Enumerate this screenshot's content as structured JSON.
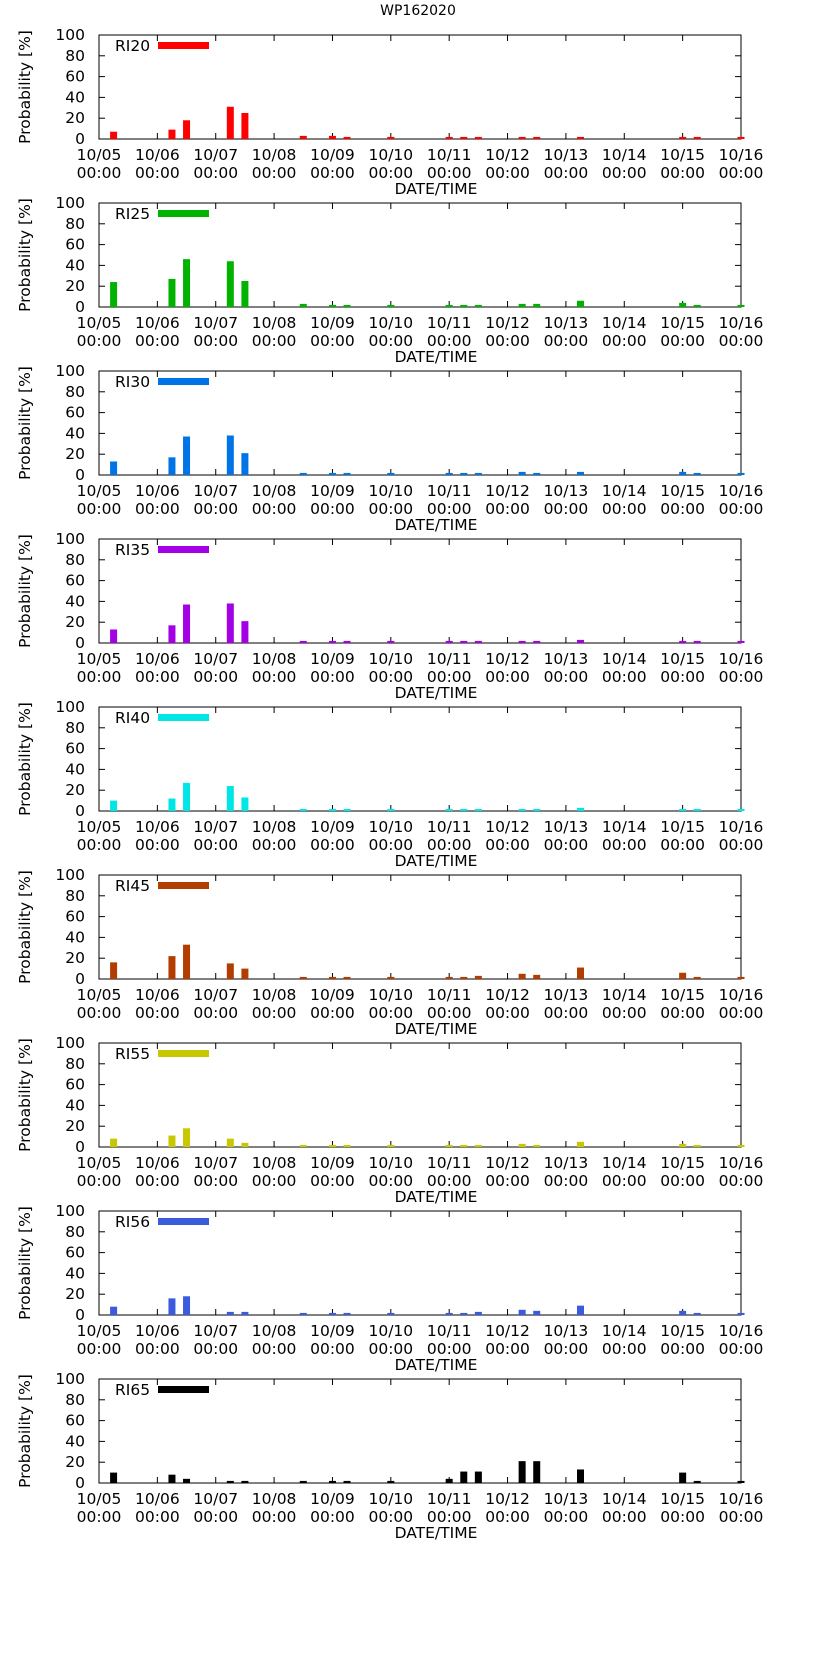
{
  "title": "WP162020",
  "x_axis_label": "DATE/TIME",
  "y_axis_label": "Probability [%]",
  "x_tick_labels": [
    {
      "date": "10/05",
      "time": "00:00"
    },
    {
      "date": "10/06",
      "time": "00:00"
    },
    {
      "date": "10/07",
      "time": "00:00"
    },
    {
      "date": "10/08",
      "time": "00:00"
    },
    {
      "date": "10/09",
      "time": "00:00"
    },
    {
      "date": "10/10",
      "time": "00:00"
    },
    {
      "date": "10/11",
      "time": "00:00"
    },
    {
      "date": "10/12",
      "time": "00:00"
    },
    {
      "date": "10/13",
      "time": "00:00"
    },
    {
      "date": "10/14",
      "time": "00:00"
    },
    {
      "date": "10/15",
      "time": "00:00"
    },
    {
      "date": "10/16",
      "time": "00:00"
    }
  ],
  "y_tick_labels": [
    "0",
    "20",
    "40",
    "60",
    "80",
    "100"
  ],
  "chart_data": {
    "type": "bar",
    "title": "WP162020",
    "xlabel": "DATE/TIME",
    "ylabel": "Probability [%]",
    "ylim": [
      0,
      100
    ],
    "x_unit": "days since 10/05 00:00",
    "xlim": [
      0,
      11
    ],
    "x": [
      0.25,
      1.25,
      1.5,
      2.25,
      2.5,
      3.5,
      4.0,
      4.25,
      5.0,
      6.0,
      6.25,
      6.5,
      7.25,
      7.5,
      8.25,
      10.0,
      10.25,
      11.0
    ],
    "series": [
      {
        "name": "RI20",
        "color": "#ff0000",
        "values": [
          7,
          9,
          18,
          31,
          25,
          3,
          3,
          2,
          2,
          2,
          2,
          2,
          2,
          2,
          2,
          2,
          2,
          2
        ]
      },
      {
        "name": "RI25",
        "color": "#00b300",
        "values": [
          24,
          27,
          46,
          44,
          25,
          3,
          2,
          2,
          2,
          2,
          2,
          2,
          3,
          3,
          6,
          4,
          2,
          2
        ]
      },
      {
        "name": "RI30",
        "color": "#0073e6",
        "values": [
          13,
          17,
          37,
          38,
          21,
          2,
          2,
          2,
          2,
          2,
          2,
          2,
          3,
          2,
          3,
          3,
          2,
          2
        ]
      },
      {
        "name": "RI35",
        "color": "#a300e6",
        "values": [
          13,
          17,
          37,
          38,
          21,
          2,
          2,
          2,
          2,
          2,
          2,
          2,
          2,
          2,
          3,
          2,
          2,
          2
        ]
      },
      {
        "name": "RI40",
        "color": "#00e6e6",
        "values": [
          10,
          12,
          27,
          24,
          13,
          2,
          2,
          2,
          2,
          2,
          2,
          2,
          2,
          2,
          3,
          2,
          2,
          2
        ]
      },
      {
        "name": "RI45",
        "color": "#b33c00",
        "values": [
          16,
          22,
          33,
          15,
          10,
          2,
          2,
          2,
          2,
          2,
          2,
          3,
          5,
          4,
          11,
          6,
          2,
          2
        ]
      },
      {
        "name": "RI55",
        "color": "#c8c800",
        "values": [
          8,
          11,
          18,
          8,
          4,
          2,
          2,
          2,
          2,
          2,
          2,
          2,
          3,
          2,
          5,
          3,
          2,
          2
        ]
      },
      {
        "name": "RI56",
        "color": "#3c5adc",
        "values": [
          8,
          16,
          18,
          3,
          3,
          2,
          2,
          2,
          2,
          2,
          2,
          3,
          5,
          4,
          9,
          4,
          2,
          2
        ]
      },
      {
        "name": "RI65",
        "color": "#000000",
        "values": [
          10,
          8,
          4,
          2,
          2,
          2,
          2,
          2,
          2,
          4,
          11,
          11,
          21,
          21,
          13,
          10,
          2,
          2
        ]
      }
    ]
  }
}
